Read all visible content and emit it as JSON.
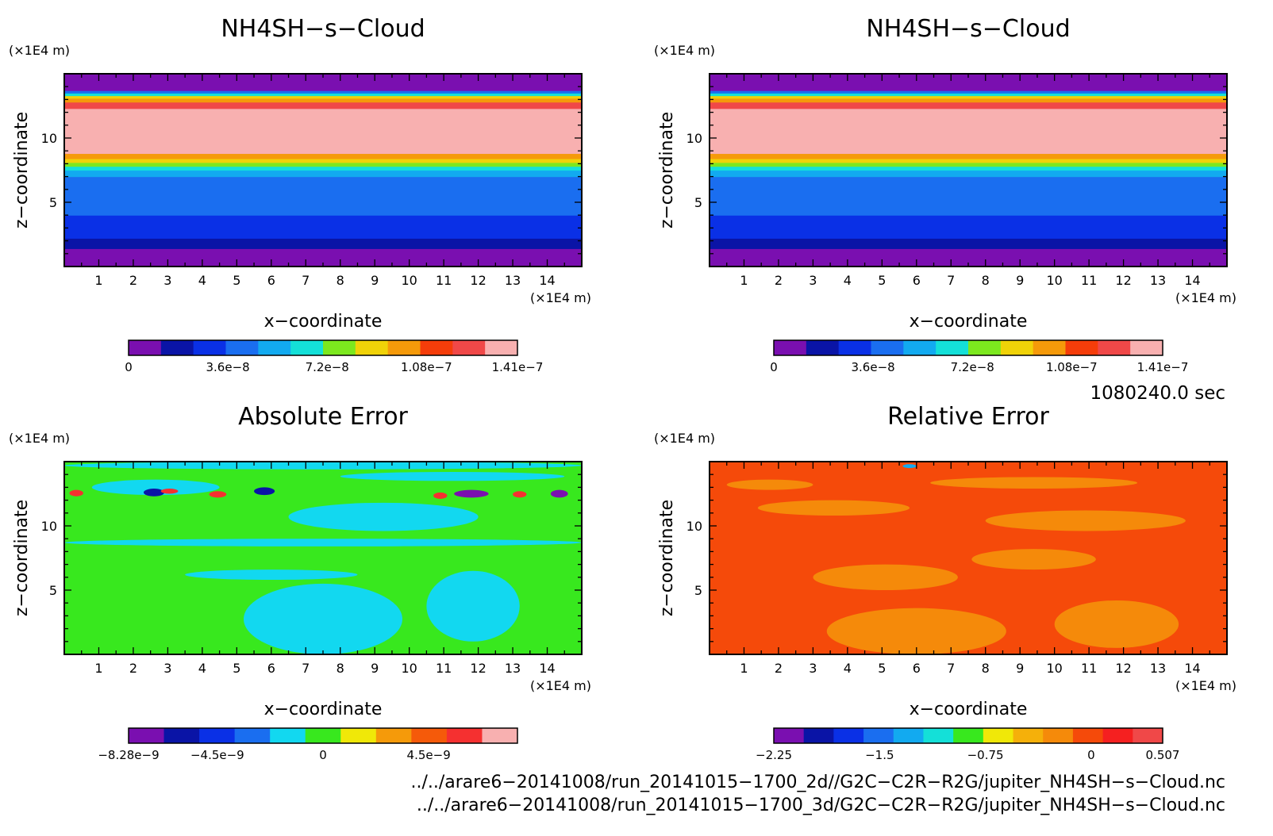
{
  "chart_data": [
    {
      "type": "heatmap",
      "title": "NH4SH−s−Cloud",
      "xlabel": "x−coordinate",
      "ylabel": "z−coordinate",
      "x_unit": "(×1E4 m)",
      "y_unit": "(×1E4 m)",
      "xlim": [
        0,
        15
      ],
      "ylim": [
        0,
        15
      ],
      "x_ticks": [
        "1",
        "2",
        "3",
        "4",
        "5",
        "6",
        "7",
        "8",
        "9",
        "10",
        "11",
        "12",
        "13",
        "14"
      ],
      "y_ticks": [
        "5",
        "10"
      ],
      "colorbar": {
        "colors": [
          "#7a0fb0",
          "#0a14a6",
          "#0a30e6",
          "#1a6ef0",
          "#12aaf0",
          "#14e0d8",
          "#7ce81e",
          "#f0d208",
          "#f59a0a",
          "#f53d0a",
          "#f04848",
          "#f8b0b0"
        ],
        "tick_labels": [
          "0",
          "3.6e−8",
          "7.2e−8",
          "1.08e−7",
          "1.41e−7"
        ],
        "tick_values": [
          0,
          3.6e-08,
          7.2e-08,
          1.08e-07,
          1.41e-07
        ],
        "range": [
          0,
          1.41e-07
        ]
      },
      "z_profile": [
        {
          "z_from": 0.0,
          "z_to": 1.4,
          "value": 0
        },
        {
          "z_from": 1.4,
          "z_to": 2.2,
          "value": 1.2e-08
        },
        {
          "z_from": 2.2,
          "z_to": 4.0,
          "value": 2.4e-08
        },
        {
          "z_from": 4.0,
          "z_to": 7.0,
          "value": 3.6e-08
        },
        {
          "z_from": 7.0,
          "z_to": 7.5,
          "value": 4.8e-08
        },
        {
          "z_from": 7.5,
          "z_to": 7.8,
          "value": 6e-08
        },
        {
          "z_from": 7.8,
          "z_to": 8.1,
          "value": 7.2e-08
        },
        {
          "z_from": 8.1,
          "z_to": 8.4,
          "value": 8.4e-08
        },
        {
          "z_from": 8.4,
          "z_to": 8.8,
          "value": 9.6e-08
        },
        {
          "z_from": 8.8,
          "z_to": 12.3,
          "value": 1.41e-07
        },
        {
          "z_from": 12.3,
          "z_to": 12.8,
          "value": 1.2e-07
        },
        {
          "z_from": 12.8,
          "z_to": 13.1,
          "value": 9.6e-08
        },
        {
          "z_from": 13.1,
          "z_to": 13.3,
          "value": 8.4e-08
        },
        {
          "z_from": 13.3,
          "z_to": 13.5,
          "value": 6e-08
        },
        {
          "z_from": 13.5,
          "z_to": 13.7,
          "value": 3.6e-08
        },
        {
          "z_from": 13.7,
          "z_to": 15.0,
          "value": 0
        }
      ]
    },
    {
      "type": "heatmap",
      "title": "NH4SH−s−Cloud",
      "xlabel": "x−coordinate",
      "ylabel": "z−coordinate",
      "x_unit": "(×1E4 m)",
      "y_unit": "(×1E4 m)",
      "xlim": [
        0,
        15
      ],
      "ylim": [
        0,
        15
      ],
      "x_ticks": [
        "1",
        "2",
        "3",
        "4",
        "5",
        "6",
        "7",
        "8",
        "9",
        "10",
        "11",
        "12",
        "13",
        "14"
      ],
      "y_ticks": [
        "5",
        "10"
      ],
      "colorbar": {
        "colors": [
          "#7a0fb0",
          "#0a14a6",
          "#0a30e6",
          "#1a6ef0",
          "#12aaf0",
          "#14e0d8",
          "#7ce81e",
          "#f0d208",
          "#f59a0a",
          "#f53d0a",
          "#f04848",
          "#f8b0b0"
        ],
        "tick_labels": [
          "0",
          "3.6e−8",
          "7.2e−8",
          "1.08e−7",
          "1.41e−7"
        ],
        "tick_values": [
          0,
          3.6e-08,
          7.2e-08,
          1.08e-07,
          1.41e-07
        ],
        "range": [
          0,
          1.41e-07
        ]
      },
      "z_profile": [
        {
          "z_from": 0.0,
          "z_to": 1.4,
          "value": 0
        },
        {
          "z_from": 1.4,
          "z_to": 2.2,
          "value": 1.2e-08
        },
        {
          "z_from": 2.2,
          "z_to": 4.0,
          "value": 2.4e-08
        },
        {
          "z_from": 4.0,
          "z_to": 7.0,
          "value": 3.6e-08
        },
        {
          "z_from": 7.0,
          "z_to": 7.5,
          "value": 4.8e-08
        },
        {
          "z_from": 7.5,
          "z_to": 7.8,
          "value": 6e-08
        },
        {
          "z_from": 7.8,
          "z_to": 8.1,
          "value": 7.2e-08
        },
        {
          "z_from": 8.1,
          "z_to": 8.4,
          "value": 8.4e-08
        },
        {
          "z_from": 8.4,
          "z_to": 8.8,
          "value": 9.6e-08
        },
        {
          "z_from": 8.8,
          "z_to": 12.3,
          "value": 1.41e-07
        },
        {
          "z_from": 12.3,
          "z_to": 12.8,
          "value": 1.2e-07
        },
        {
          "z_from": 12.8,
          "z_to": 13.1,
          "value": 9.6e-08
        },
        {
          "z_from": 13.1,
          "z_to": 13.3,
          "value": 8.4e-08
        },
        {
          "z_from": 13.3,
          "z_to": 13.5,
          "value": 6e-08
        },
        {
          "z_from": 13.5,
          "z_to": 13.7,
          "value": 3.6e-08
        },
        {
          "z_from": 13.7,
          "z_to": 15.0,
          "value": 0
        }
      ]
    },
    {
      "type": "heatmap",
      "title": "Absolute Error",
      "xlabel": "x−coordinate",
      "ylabel": "z−coordinate",
      "x_unit": "(×1E4 m)",
      "y_unit": "(×1E4 m)",
      "xlim": [
        0,
        15
      ],
      "ylim": [
        0,
        15
      ],
      "x_ticks": [
        "1",
        "2",
        "3",
        "4",
        "5",
        "6",
        "7",
        "8",
        "9",
        "10",
        "11",
        "12",
        "13",
        "14"
      ],
      "y_ticks": [
        "5",
        "10"
      ],
      "colorbar": {
        "colors": [
          "#7a0fb0",
          "#0a14a6",
          "#0a30e6",
          "#1a6ef0",
          "#12d8f0",
          "#38e81e",
          "#f0e808",
          "#f59a0a",
          "#f55a0a",
          "#f53030",
          "#f8b0b0"
        ],
        "tick_labels": [
          "−8.28e−9",
          "−4.5e−9",
          "0",
          "4.5e−9"
        ],
        "tick_values": [
          -8.28e-09,
          -4.5e-09,
          0,
          4.5e-09
        ],
        "range": [
          -8.28e-09,
          8.28e-09
        ]
      },
      "background_value": 0,
      "regions": [
        {
          "x": [
            5.2,
            9.8
          ],
          "z": [
            0.0,
            5.5
          ],
          "value": -1e-09
        },
        {
          "x": [
            10.5,
            13.2
          ],
          "z": [
            1.0,
            6.5
          ],
          "value": -1e-09
        },
        {
          "x": [
            3.5,
            8.5
          ],
          "z": [
            5.8,
            6.6
          ],
          "value": -1e-09
        },
        {
          "x": [
            0.0,
            15.0
          ],
          "z": [
            8.4,
            9.0
          ],
          "value": -1e-09
        },
        {
          "x": [
            6.5,
            12.0
          ],
          "z": [
            9.6,
            11.8
          ],
          "value": -1e-09
        },
        {
          "x": [
            0.8,
            4.5
          ],
          "z": [
            12.4,
            13.6
          ],
          "value": -1e-09
        },
        {
          "x": [
            8.0,
            14.5
          ],
          "z": [
            13.5,
            14.2
          ],
          "value": -1e-09
        },
        {
          "x": [
            0.0,
            15.0
          ],
          "z": [
            14.4,
            15.0
          ],
          "value": -1e-09
        },
        {
          "x": [
            2.3,
            2.9
          ],
          "z": [
            12.3,
            12.9
          ],
          "value": -5.5e-09
        },
        {
          "x": [
            5.5,
            6.1
          ],
          "z": [
            12.4,
            13.0
          ],
          "value": -5.5e-09
        },
        {
          "x": [
            11.3,
            12.3
          ],
          "z": [
            12.2,
            12.8
          ],
          "value": -7e-09
        },
        {
          "x": [
            14.1,
            14.6
          ],
          "z": [
            12.2,
            12.8
          ],
          "value": -7e-09
        },
        {
          "x": [
            0.15,
            0.55
          ],
          "z": [
            12.3,
            12.8
          ],
          "value": 6.5e-09
        },
        {
          "x": [
            2.8,
            3.3
          ],
          "z": [
            12.5,
            12.9
          ],
          "value": 6.5e-09
        },
        {
          "x": [
            4.2,
            4.7
          ],
          "z": [
            12.2,
            12.7
          ],
          "value": 6.5e-09
        },
        {
          "x": [
            10.7,
            11.1
          ],
          "z": [
            12.1,
            12.6
          ],
          "value": 6.5e-09
        },
        {
          "x": [
            13.0,
            13.4
          ],
          "z": [
            12.2,
            12.7
          ],
          "value": 6.5e-09
        }
      ]
    },
    {
      "type": "heatmap",
      "title": "Relative Error",
      "xlabel": "x−coordinate",
      "ylabel": "z−coordinate",
      "x_unit": "(×1E4 m)",
      "y_unit": "(×1E4 m)",
      "xlim": [
        0,
        15
      ],
      "ylim": [
        0,
        15
      ],
      "x_ticks": [
        "1",
        "2",
        "3",
        "4",
        "5",
        "6",
        "7",
        "8",
        "9",
        "10",
        "11",
        "12",
        "13",
        "14"
      ],
      "y_ticks": [
        "5",
        "10"
      ],
      "colorbar": {
        "colors": [
          "#7a0fb0",
          "#0a14a6",
          "#0a30e6",
          "#1a6ef0",
          "#12aaf0",
          "#14e0d8",
          "#38e81e",
          "#f0e808",
          "#f5b00a",
          "#f58a0a",
          "#f54a0a",
          "#f52020",
          "#f04848"
        ],
        "tick_labels": [
          "−2.25",
          "−1.5",
          "−0.75",
          "0",
          "0.507"
        ],
        "tick_values": [
          -2.25,
          -1.5,
          -0.75,
          0,
          0.507
        ],
        "range": [
          -2.25,
          0.507
        ]
      },
      "background_value": 0.05,
      "regions": [
        {
          "x": [
            3.4,
            8.6
          ],
          "z": [
            0.0,
            3.6
          ],
          "value": -0.2
        },
        {
          "x": [
            10.0,
            13.6
          ],
          "z": [
            0.5,
            4.2
          ],
          "value": -0.2
        },
        {
          "x": [
            3.0,
            7.2
          ],
          "z": [
            5.0,
            7.0
          ],
          "value": -0.2
        },
        {
          "x": [
            7.6,
            11.2
          ],
          "z": [
            6.6,
            8.2
          ],
          "value": -0.2
        },
        {
          "x": [
            1.4,
            5.8
          ],
          "z": [
            10.8,
            12.0
          ],
          "value": -0.2
        },
        {
          "x": [
            8.0,
            13.8
          ],
          "z": [
            9.6,
            11.2
          ],
          "value": -0.2
        },
        {
          "x": [
            0.5,
            3.0
          ],
          "z": [
            12.8,
            13.6
          ],
          "value": -0.2
        },
        {
          "x": [
            6.4,
            12.4
          ],
          "z": [
            12.9,
            13.8
          ],
          "value": -0.2
        },
        {
          "x": [
            5.6,
            6.0
          ],
          "z": [
            14.5,
            14.8
          ],
          "value": -1.3
        }
      ]
    }
  ],
  "time_label": "1080240.0 sec",
  "file_paths": [
    "../../arare6−20141008/run_20141015−1700_2d//G2C−C2R−R2G/jupiter_NH4SH−s−Cloud.nc",
    "../../arare6−20141008/run_20141015−1700_3d/G2C−C2R−R2G/jupiter_NH4SH−s−Cloud.nc"
  ]
}
